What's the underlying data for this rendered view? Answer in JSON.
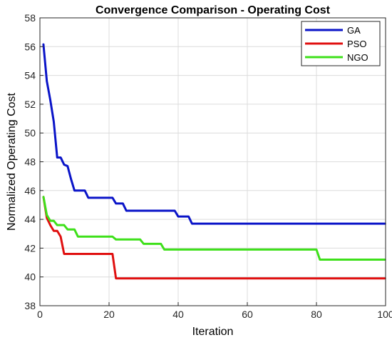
{
  "chart_data": {
    "type": "line",
    "title": "Convergence Comparison - Operating Cost",
    "xlabel": "Iteration",
    "ylabel": "Normalized Operating Cost",
    "xlim": [
      0,
      100
    ],
    "ylim": [
      38,
      58
    ],
    "xticks": [
      0,
      20,
      40,
      60,
      80,
      100
    ],
    "yticks": [
      38,
      40,
      42,
      44,
      46,
      48,
      50,
      52,
      54,
      56,
      58
    ],
    "grid": true,
    "legend_position": "top-right",
    "series": [
      {
        "name": "GA",
        "color": "#0a14c8",
        "x": [
          1,
          2,
          3,
          4,
          5,
          6,
          7,
          8,
          9,
          10,
          11,
          14,
          20,
          22,
          25,
          30,
          38,
          40,
          44,
          100
        ],
        "y": [
          56.2,
          53.6,
          52.3,
          50.8,
          48.3,
          48.3,
          47.8,
          47.7,
          46.8,
          46.0,
          46.0,
          45.5,
          45.5,
          45.1,
          44.6,
          44.6,
          44.6,
          44.2,
          43.7,
          43.7
        ]
      },
      {
        "name": "PSO",
        "color": "#e01010",
        "x": [
          1,
          2,
          3,
          4,
          5,
          6,
          7,
          21,
          22,
          100
        ],
        "y": [
          45.6,
          44.1,
          43.6,
          43.2,
          43.2,
          42.8,
          41.6,
          41.6,
          39.9,
          39.9
        ]
      },
      {
        "name": "NGO",
        "color": "#3ee01a",
        "x": [
          1,
          2,
          3,
          5,
          8,
          11,
          22,
          30,
          36,
          80,
          81,
          100
        ],
        "y": [
          45.6,
          44.3,
          43.9,
          43.6,
          43.3,
          42.8,
          42.6,
          42.3,
          41.9,
          41.9,
          41.2,
          41.2
        ]
      }
    ]
  }
}
